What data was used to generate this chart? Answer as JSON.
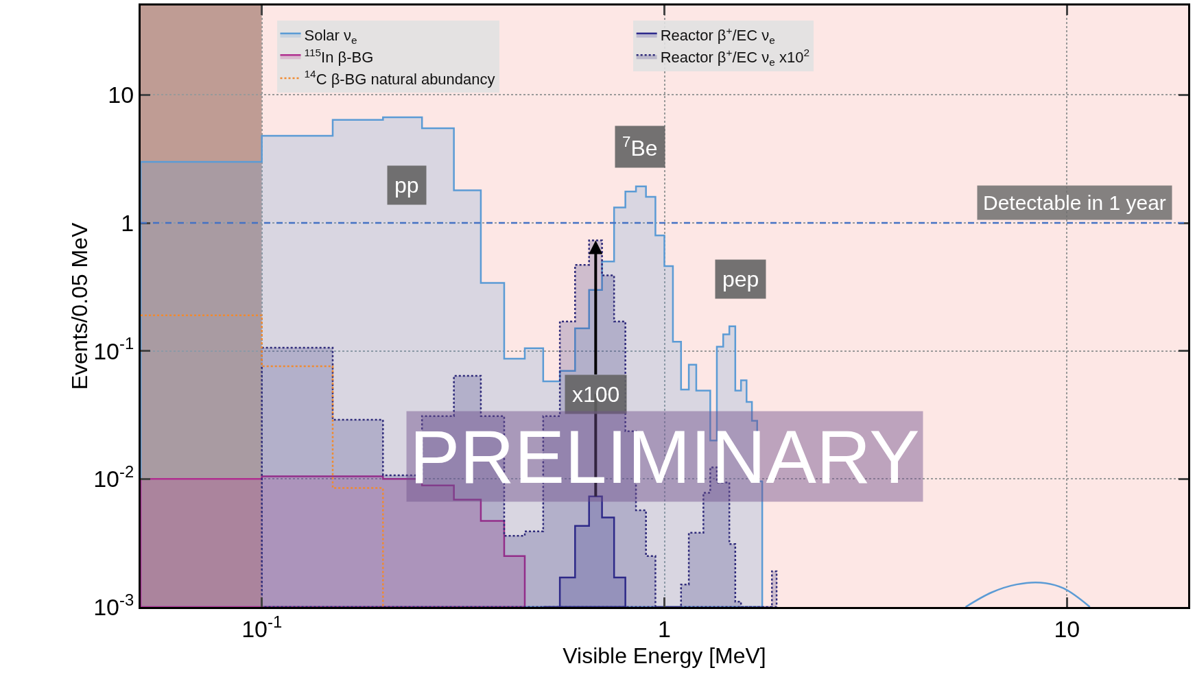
{
  "chart_data": {
    "type": "step",
    "xlabel": "Visible Energy [MeV]",
    "ylabel": "Events/0.05 MeV",
    "log": "xy",
    "grid": true,
    "legend": "top",
    "line_style": "solid",
    "xlim": [
      0.05,
      20
    ],
    "xticks": [
      {
        "value": 0.1,
        "label": "10$^{-1}$"
      },
      1,
      10
    ],
    "ylim": [
      0.001,
      50
    ],
    "yticks": [
      {
        "value": 0.001,
        "label": "10$^{-3}$"
      },
      {
        "value": 0.01,
        "label": "10$^{-2}$"
      },
      {
        "value": 0.1,
        "label": "10$^{-1}$"
      },
      1,
      10
    ],
    "series": [
      {
        "name": "Solar ν$_{e}$",
        "type": "area",
        "color": "#5b9bd5",
        "x": [
          0.05,
          0.1,
          0.15,
          0.2,
          0.25,
          0.3,
          0.35,
          0.4,
          0.45,
          0.5,
          0.55,
          0.6,
          0.65,
          0.7,
          0.75,
          0.8,
          0.85,
          0.9,
          0.95,
          1.0,
          1.05,
          1.1,
          1.15,
          1.2,
          1.25,
          1.3,
          1.35,
          1.4,
          1.45,
          1.5,
          1.55,
          1.6,
          1.65,
          1.7,
          1.75
        ],
        "values": [
          3.0,
          4.8,
          6.4,
          6.7,
          5.5,
          1.8,
          0.34,
          0.087,
          0.105,
          0.058,
          0.07,
          0.15,
          0.3,
          0.5,
          1.32,
          1.76,
          1.93,
          1.6,
          0.8,
          0.46,
          0.118,
          0.05,
          0.078,
          0.049,
          0.049,
          0.02,
          0.108,
          0.135,
          0.156,
          0.049,
          0.059,
          0.04,
          0.0285,
          0.0096,
          0.001
        ]
      },
      {
        "name": "$^{115}$In β-BG",
        "type": "area",
        "color": "#b0308f",
        "x": [
          0.05,
          0.1,
          0.15,
          0.2,
          0.25,
          0.3,
          0.35,
          0.4,
          0.45
        ],
        "values": [
          0.01,
          0.0105,
          0.0105,
          0.01,
          0.0089,
          0.0069,
          0.0047,
          0.0025,
          0.001
        ]
      },
      {
        "name": "$^{14}$C β-BG natural abundancy",
        "type": "step",
        "line_style": "dotted",
        "color": "#f08a30",
        "x": [
          0.05,
          0.1,
          0.15,
          0.2
        ],
        "values": [
          0.19,
          0.076,
          0.0085,
          0.001
        ]
      },
      {
        "name": "Reactor β$^{+}$/EC ν$_{e}$",
        "type": "area",
        "color": "#2e2a8c",
        "x": [
          0.5,
          0.55,
          0.6,
          0.65,
          0.7,
          0.75,
          0.8
        ],
        "values": [
          0.001,
          0.0017,
          0.0043,
          0.0073,
          0.005,
          0.0017,
          0.001
        ]
      },
      {
        "name": "Reactor β$^{+}$/EC ν$_{e}$ x10$^{2}$",
        "type": "area",
        "line_style": "dotted",
        "color": "#2e2a7a",
        "x": [
          0.1,
          0.15,
          0.2,
          0.25,
          0.3,
          0.35,
          0.4,
          0.45,
          0.5,
          0.55,
          0.6,
          0.65,
          0.7,
          0.75,
          0.8,
          0.85,
          0.9,
          0.95,
          1.0,
          1.05,
          1.1,
          1.15,
          1.2,
          1.25,
          1.3,
          1.35,
          1.4,
          1.45,
          1.5,
          1.55,
          1.6,
          1.65,
          1.7,
          1.75,
          1.8,
          1.85,
          1.9
        ],
        "values": [
          0.106,
          0.029,
          0.0107,
          0.031,
          0.064,
          0.031,
          0.0036,
          0.0039,
          0.031,
          0.17,
          0.47,
          0.73,
          0.39,
          0.17,
          0.0236,
          0.0057,
          0.0025,
          0.001,
          0.001,
          0.001,
          0.0015,
          0.0038,
          0.0038,
          0.0078,
          0.0123,
          0.0094,
          0.0094,
          0.0031,
          0.0011,
          0.001,
          0.001,
          0.001,
          0.001,
          0.001,
          0.001,
          0.0019,
          0.001
        ]
      },
      {
        "type": "line",
        "color": "#5b9bd5",
        "x": [
          5.6,
          6.5,
          7.5,
          8.6,
          9.8,
          11.4
        ],
        "values": [
          0.001,
          0.0013,
          0.0015,
          0.00155,
          0.0014,
          0.001
        ]
      }
    ],
    "ref_lines": [
      {
        "axis": "y",
        "value": 1,
        "label": "Detectable in 1 year",
        "color": "#4472c4",
        "line_style": "dashed"
      }
    ],
    "bands": [
      {
        "axis": "x",
        "from": 0.05,
        "to": 0.1,
        "color": "#8b4a3c"
      },
      {
        "axis": "x",
        "from": 0.1,
        "to": 20,
        "color": "#fbd3d0"
      }
    ],
    "annotations": [
      "pp",
      "$^{7}$Be",
      "pep",
      {
        "text": "x100",
        "x": 0.675,
        "y": 0.73
      },
      "PRELIMINARY"
    ]
  }
}
